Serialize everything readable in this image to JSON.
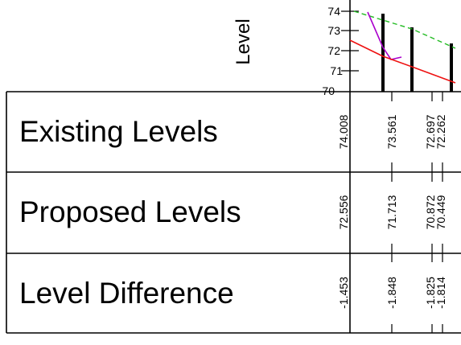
{
  "profile": {
    "axis_label": "Level",
    "y_ticks": [
      "74",
      "73",
      "72",
      "71",
      "70"
    ],
    "y_range": [
      70,
      74
    ]
  },
  "table": {
    "rows": [
      {
        "label": "Existing Levels",
        "values": [
          "74.008",
          "73.561",
          "72.697",
          "72.262"
        ]
      },
      {
        "label": "Proposed Levels",
        "values": [
          "72.556",
          "71.713",
          "70.872",
          "70.449"
        ]
      },
      {
        "label": "Level Difference",
        "values": [
          "-1.453",
          "-1.848",
          "-1.825",
          "-1.814"
        ]
      }
    ]
  },
  "colors": {
    "existing_line": "#22bb22",
    "proposed_line": "#ee1111",
    "alt_line": "#aa00cc",
    "ink": "#000000"
  }
}
